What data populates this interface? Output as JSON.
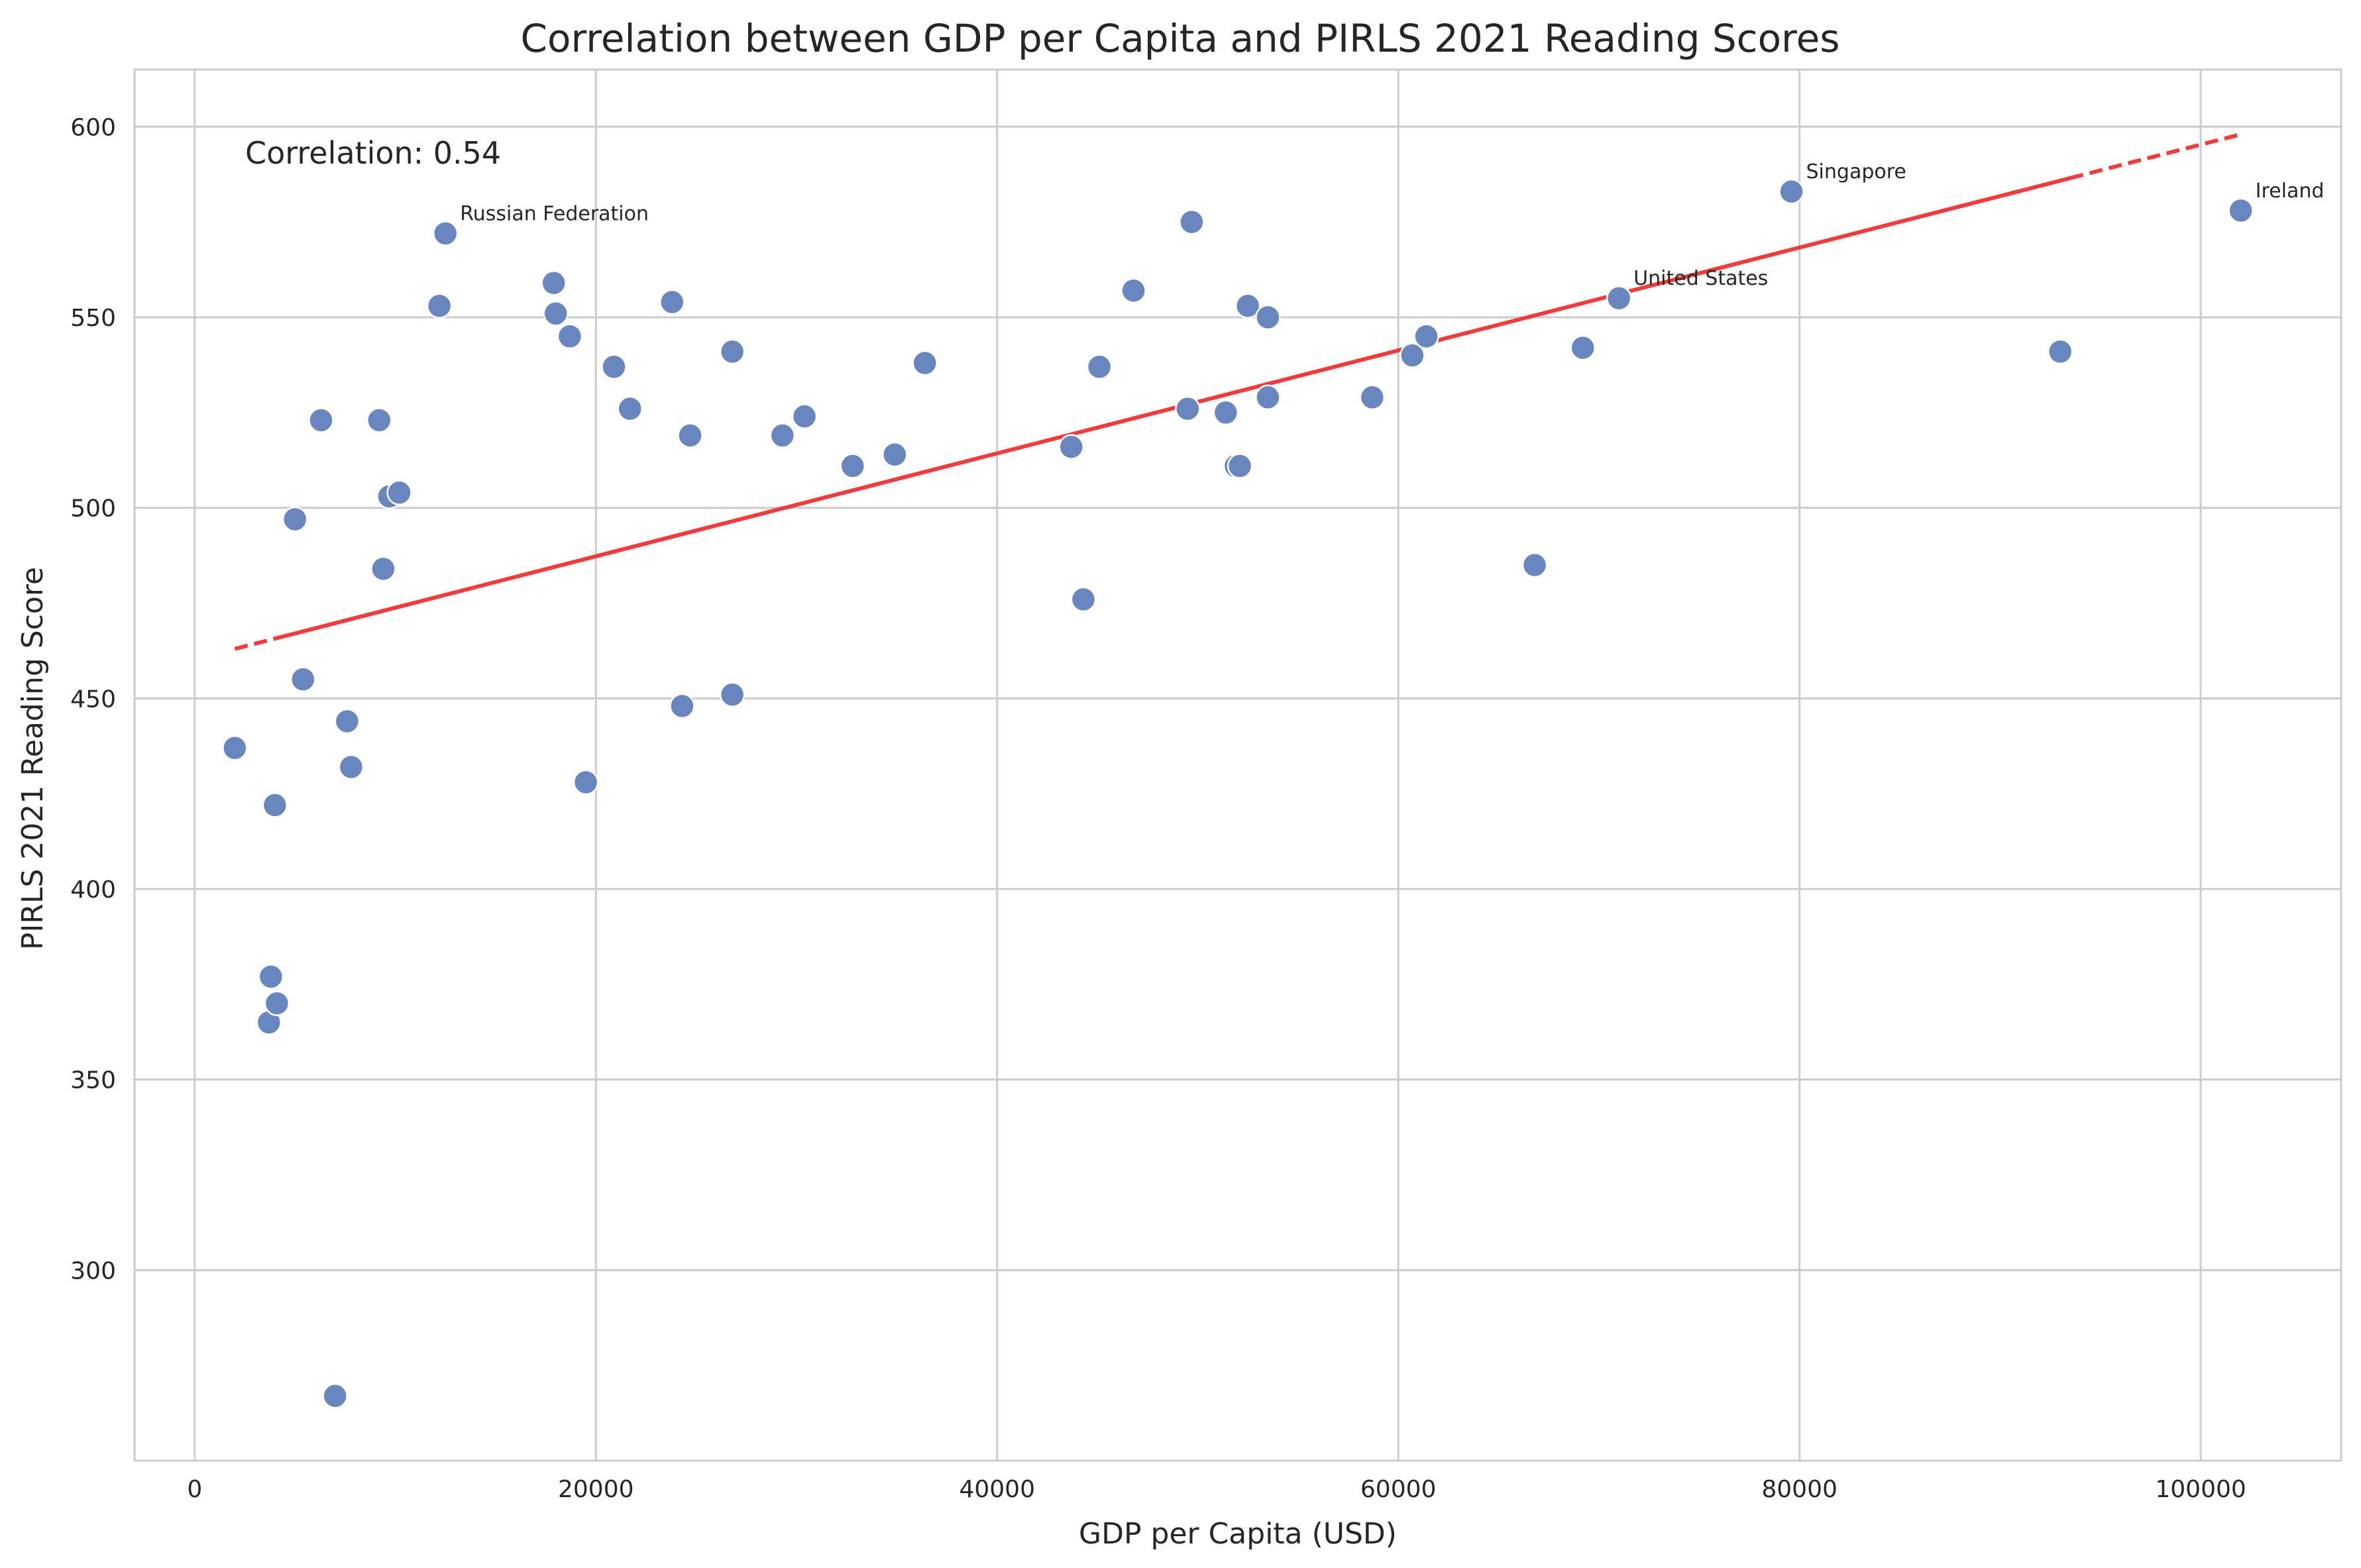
{
  "chart_data": {
    "type": "scatter",
    "title": "Correlation between GDP per Capita and PIRLS 2021 Reading Scores",
    "xlabel": "GDP per Capita (USD)",
    "ylabel": "PIRLS 2021 Reading Score",
    "xlim": [
      -3000,
      107000
    ],
    "ylim": [
      250,
      615
    ],
    "xticks": [
      0,
      20000,
      40000,
      60000,
      80000,
      100000
    ],
    "xtick_labels": [
      "0",
      "20000",
      "40000",
      "60000",
      "80000",
      "100000"
    ],
    "yticks": [
      300,
      350,
      400,
      450,
      500,
      550,
      600
    ],
    "ytick_labels": [
      "300",
      "350",
      "400",
      "450",
      "500",
      "550",
      "600"
    ],
    "grid": true,
    "point_color": "#6a86bf",
    "trend_color": "#f03232",
    "correlation_text": "Correlation: 0.54",
    "trendline": {
      "x": [
        2000,
        102000
      ],
      "y": [
        463,
        598
      ]
    },
    "points": [
      {
        "x": 2000,
        "y": 437
      },
      {
        "x": 3700,
        "y": 365
      },
      {
        "x": 3800,
        "y": 377
      },
      {
        "x": 4000,
        "y": 422
      },
      {
        "x": 4100,
        "y": 370
      },
      {
        "x": 5000,
        "y": 497
      },
      {
        "x": 5400,
        "y": 455
      },
      {
        "x": 6300,
        "y": 523
      },
      {
        "x": 7000,
        "y": 267
      },
      {
        "x": 7600,
        "y": 444
      },
      {
        "x": 7800,
        "y": 432
      },
      {
        "x": 9200,
        "y": 523
      },
      {
        "x": 9400,
        "y": 484
      },
      {
        "x": 9700,
        "y": 503
      },
      {
        "x": 10200,
        "y": 504
      },
      {
        "x": 12200,
        "y": 553
      },
      {
        "x": 12500,
        "y": 572
      },
      {
        "x": 17900,
        "y": 559
      },
      {
        "x": 18000,
        "y": 551
      },
      {
        "x": 18700,
        "y": 545
      },
      {
        "x": 19500,
        "y": 428
      },
      {
        "x": 20900,
        "y": 537
      },
      {
        "x": 21700,
        "y": 526
      },
      {
        "x": 23800,
        "y": 554
      },
      {
        "x": 24300,
        "y": 448
      },
      {
        "x": 24700,
        "y": 519
      },
      {
        "x": 26800,
        "y": 541
      },
      {
        "x": 26800,
        "y": 451
      },
      {
        "x": 29300,
        "y": 519
      },
      {
        "x": 30400,
        "y": 524
      },
      {
        "x": 32800,
        "y": 511
      },
      {
        "x": 34900,
        "y": 514
      },
      {
        "x": 36400,
        "y": 538
      },
      {
        "x": 43700,
        "y": 516
      },
      {
        "x": 44300,
        "y": 476
      },
      {
        "x": 45100,
        "y": 537
      },
      {
        "x": 46800,
        "y": 557
      },
      {
        "x": 49500,
        "y": 526
      },
      {
        "x": 49700,
        "y": 575
      },
      {
        "x": 51400,
        "y": 525
      },
      {
        "x": 51900,
        "y": 511
      },
      {
        "x": 52100,
        "y": 511
      },
      {
        "x": 52500,
        "y": 553
      },
      {
        "x": 53500,
        "y": 550
      },
      {
        "x": 53500,
        "y": 529
      },
      {
        "x": 58700,
        "y": 529
      },
      {
        "x": 60700,
        "y": 540
      },
      {
        "x": 61400,
        "y": 545
      },
      {
        "x": 66800,
        "y": 485
      },
      {
        "x": 69200,
        "y": 542
      },
      {
        "x": 71000,
        "y": 555
      },
      {
        "x": 79600,
        "y": 583
      },
      {
        "x": 93000,
        "y": 541
      },
      {
        "x": 102000,
        "y": 578
      }
    ],
    "annotations": [
      {
        "text": "Russian Federation",
        "x": 12500,
        "y": 572
      },
      {
        "text": "Singapore",
        "x": 79600,
        "y": 583
      },
      {
        "text": "United States",
        "x": 71000,
        "y": 555
      },
      {
        "text": "Ireland",
        "x": 102000,
        "y": 578
      }
    ]
  }
}
